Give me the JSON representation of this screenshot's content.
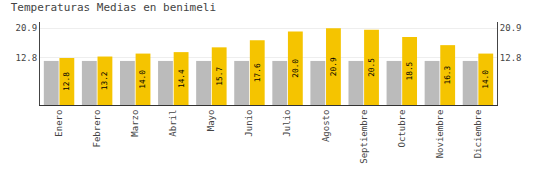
{
  "chart_data": {
    "type": "bar",
    "title": "Temperaturas Medias en benimeli",
    "categories": [
      "Enero",
      "Febrero",
      "Marzo",
      "Abril",
      "Mayo",
      "Junio",
      "Julio",
      "Agosto",
      "Septiembre",
      "Octubre",
      "Noviembre",
      "Diciembre"
    ],
    "series": [
      {
        "color": "#BBBBBB",
        "values": [
          12.0,
          12.0,
          12.0,
          12.0,
          12.0,
          12.0,
          12.0,
          12.0,
          12.0,
          12.0,
          12.0,
          12.0
        ]
      },
      {
        "color": "#F5C400",
        "values": [
          12.8,
          13.2,
          14.0,
          14.4,
          15.7,
          17.6,
          20.0,
          20.9,
          20.5,
          18.5,
          16.3,
          14.0
        ],
        "value_labels": [
          "12.8",
          "13.2",
          "14.0",
          "14.4",
          "15.7",
          "17.6",
          "20.0",
          "20.9",
          "20.5",
          "18.5",
          "16.3",
          "14.0"
        ],
        "data_labels": true
      }
    ],
    "ylim": [
      0,
      22.6
    ],
    "yticks": [
      12.8,
      20.9
    ],
    "y2lim": [
      0,
      22.6
    ],
    "y2ticks": [
      12.8,
      20.9
    ],
    "grid": true
  }
}
